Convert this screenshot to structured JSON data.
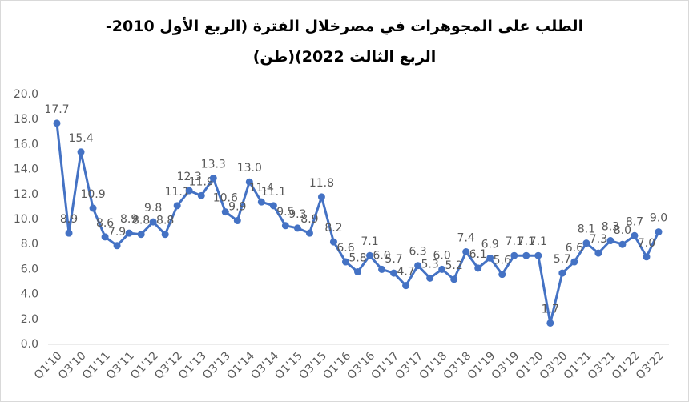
{
  "chart_data": {
    "type": "line",
    "title": "الطلب على المجوهرات في مصرخلال الفترة (الربع الأول 2010- الربع الثالث 2022)(طن)",
    "categories": [
      "Q1'10",
      null,
      "Q3'10",
      null,
      "Q1'11",
      null,
      "Q3'11",
      null,
      "Q1'12",
      null,
      "Q3'12",
      null,
      "Q1'13",
      null,
      "Q3'13",
      null,
      "Q1'14",
      null,
      "Q3'14",
      null,
      "Q1'15",
      null,
      "Q3'15",
      null,
      "Q1'16",
      null,
      "Q3'16",
      null,
      "Q1'17",
      null,
      "Q3'17",
      null,
      "Q1'18",
      null,
      "Q3'18",
      null,
      "Q1'19",
      null,
      "Q3'19",
      null,
      "Q1'20",
      null,
      "Q3'20",
      null,
      "Q1'21",
      null,
      "Q3'21",
      null,
      "Q1'22",
      null,
      "Q3'22"
    ],
    "values": [
      17.7,
      8.9,
      15.4,
      10.9,
      8.6,
      7.9,
      8.9,
      8.8,
      9.8,
      8.8,
      11.1,
      12.3,
      11.9,
      13.3,
      10.6,
      9.9,
      13.0,
      11.4,
      11.1,
      9.5,
      9.3,
      8.9,
      11.8,
      8.2,
      6.6,
      5.8,
      7.1,
      6.0,
      5.7,
      4.7,
      6.3,
      5.3,
      6.0,
      5.2,
      7.4,
      6.1,
      6.9,
      5.6,
      7.1,
      7.1,
      7.1,
      1.7,
      5.7,
      6.6,
      8.1,
      7.3,
      8.3,
      8.0,
      8.7,
      7.0,
      9.0
    ],
    "value_labels": [
      "17.7",
      "8.9",
      "15.4",
      "10.9",
      "8.6",
      "7.9",
      "8.9",
      "8.8",
      "9.8",
      "8.8",
      "11.1",
      "12.3",
      "11.9",
      "13.3",
      "10.6",
      "9.9",
      "13.0",
      "11.4",
      "11.1",
      "9.5",
      "9.3",
      "8.9",
      "11.8",
      "8.2",
      "6.6",
      "5.8",
      "7.1",
      "6.0",
      "5.7",
      "4.7",
      "6.3",
      "5.3",
      "6.0",
      "5.2",
      "7.4",
      "6.1",
      "6.9",
      "5.6",
      "7.1",
      "7.1",
      "7.1",
      "1.7",
      "5.7",
      "6.6",
      "8.1",
      "7.3",
      "8.3",
      "8.0",
      "8.7",
      "7.0",
      "9.0"
    ],
    "color": "#4472c4",
    "ylim": [
      0,
      20
    ],
    "yticks": [
      {
        "value": 0,
        "label": "0.0"
      },
      {
        "value": 2,
        "label": "2.0"
      },
      {
        "value": 4,
        "label": "4.0"
      },
      {
        "value": 6,
        "label": "6.0"
      },
      {
        "value": 8,
        "label": "8.0"
      },
      {
        "value": 10,
        "label": "10.0"
      },
      {
        "value": 12,
        "label": "12.0"
      },
      {
        "value": 14,
        "label": "14.0"
      },
      {
        "value": 16,
        "label": "16.0"
      },
      {
        "value": 18,
        "label": "18.0"
      },
      {
        "value": 20,
        "label": "20.0"
      }
    ],
    "grid": false
  }
}
